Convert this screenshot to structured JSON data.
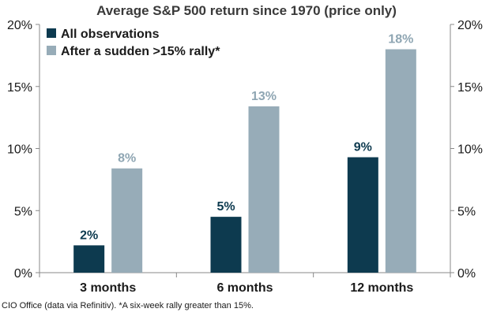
{
  "chart_data": {
    "type": "bar",
    "title": "Average S&P 500 return since 1970 (price only)",
    "categories": [
      "3 months",
      "6 months",
      "12 months"
    ],
    "series": [
      {
        "name": "All observations",
        "color": "#0d3a4f",
        "values": [
          2.2,
          4.5,
          9.3
        ],
        "labels": [
          "2%",
          "5%",
          "9%"
        ]
      },
      {
        "name": "After a sudden >15% rally*",
        "color": "#97acb8",
        "values": [
          8.4,
          13.4,
          18.0
        ],
        "labels": [
          "8%",
          "13%",
          "18%"
        ]
      }
    ],
    "ylim": [
      0,
      20
    ],
    "yticks": [
      0,
      5,
      10,
      15,
      20
    ],
    "ytick_labels": [
      "0%",
      "5%",
      "10%",
      "15%",
      "20%"
    ],
    "xlabel": "",
    "ylabel": "",
    "legend_position": "top-left",
    "label_colors": {
      "dark": "#0d3a4f",
      "light": "#8fa6b3"
    }
  },
  "footnote": "CIO Office (data via Refinitiv). *A six-week rally greater than 15%."
}
